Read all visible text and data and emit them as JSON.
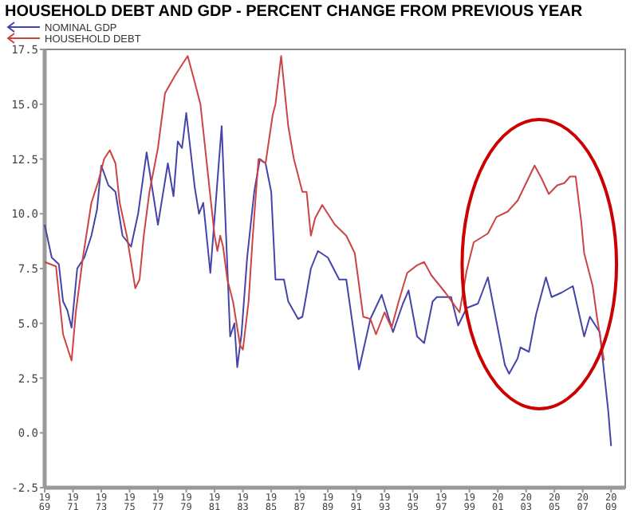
{
  "chart_data": {
    "type": "line",
    "title": "HOUSEHOLD DEBT AND GDP - PERCENT CHANGE FROM PREVIOUS YEAR",
    "legend": "top left",
    "grid": false,
    "xlim": [
      1969,
      2010
    ],
    "xticks": [
      1969,
      1971,
      1973,
      1975,
      1977,
      1979,
      1981,
      1983,
      1985,
      1987,
      1989,
      1991,
      1993,
      1995,
      1997,
      1999,
      2001,
      2003,
      2005,
      2007,
      2009
    ],
    "ylim": [
      -2.5,
      17.5
    ],
    "yticks": [
      -2.5,
      {
        "value": 0,
        "label": "0.0"
      },
      2.5,
      {
        "value": 5,
        "label": "5.0"
      },
      7.5,
      {
        "value": 10,
        "label": "10.0"
      },
      12.5,
      {
        "value": 15,
        "label": "15.0"
      },
      17.5
    ],
    "series": [
      {
        "name": "NOMINAL GDP",
        "color": "#4444aa",
        "x": [
          1969.0,
          1969.5,
          1970.0,
          1970.3,
          1970.6,
          1970.9,
          1971.3,
          1971.8,
          1972.3,
          1972.7,
          1973.0,
          1973.5,
          1974.0,
          1974.5,
          1975.1,
          1975.6,
          1976.2,
          1977.0,
          1977.7,
          1978.1,
          1978.4,
          1978.7,
          1979.0,
          1979.6,
          1979.9,
          1980.2,
          1980.7,
          1981.5,
          1982.1,
          1982.4,
          1982.6,
          1982.9,
          1983.3,
          1983.8,
          1984.2,
          1984.6,
          1985.0,
          1985.3,
          1985.9,
          1986.2,
          1986.9,
          1987.2,
          1987.4,
          1987.8,
          1988.3,
          1989.0,
          1989.8,
          1990.3,
          1991.2,
          1992.0,
          1992.8,
          1993.6,
          1994.3,
          1994.7,
          1995.3,
          1995.8,
          1996.4,
          1996.7,
          1997.7,
          1998.2,
          1998.8,
          1999.6,
          2000.3,
          2000.9,
          2001.5,
          2001.8,
          2002.4,
          2002.6,
          2003.2,
          2003.7,
          2004.4,
          2004.8,
          2005.5,
          2006.3,
          2007.1,
          2007.5,
          2008.2,
          2008.8,
          2009.0
        ],
        "values": [
          9.5,
          8.0,
          7.7,
          6.0,
          5.6,
          4.8,
          7.5,
          8.0,
          9.0,
          10.2,
          12.2,
          11.3,
          11.0,
          9.0,
          8.5,
          10.0,
          12.8,
          9.5,
          12.3,
          10.8,
          13.3,
          13.0,
          14.6,
          11.2,
          10.0,
          10.5,
          7.3,
          14.0,
          4.4,
          5.0,
          3.0,
          4.5,
          8.0,
          11.0,
          12.5,
          12.3,
          11.0,
          7.0,
          7.0,
          6.0,
          5.2,
          5.3,
          6.0,
          7.5,
          8.3,
          8.0,
          7.0,
          7.0,
          2.9,
          5.2,
          6.3,
          4.6,
          5.9,
          6.5,
          4.4,
          4.1,
          6.0,
          6.2,
          6.2,
          4.9,
          5.7,
          5.9,
          7.1,
          5.1,
          3.1,
          2.7,
          3.4,
          3.9,
          3.7,
          5.4,
          7.1,
          6.2,
          6.4,
          6.7,
          4.4,
          5.3,
          4.6,
          1.0,
          -0.6
        ]
      },
      {
        "name": "HOUSEHOLD DEBT",
        "color": "#cc4444",
        "x": [
          1969.0,
          1969.8,
          1970.3,
          1970.9,
          1971.2,
          1971.7,
          1972.3,
          1972.8,
          1973.2,
          1973.6,
          1974.0,
          1974.3,
          1974.8,
          1975.4,
          1975.7,
          1976.0,
          1976.4,
          1977.0,
          1977.5,
          1978.2,
          1979.1,
          1979.6,
          1980.0,
          1980.5,
          1981.0,
          1981.2,
          1981.4,
          1981.6,
          1981.9,
          1982.3,
          1982.8,
          1983.0,
          1983.4,
          1983.7,
          1984.1,
          1984.6,
          1985.1,
          1985.3,
          1985.7,
          1986.2,
          1986.6,
          1987.2,
          1987.5,
          1987.8,
          1988.1,
          1988.6,
          1989.5,
          1990.3,
          1990.9,
          1991.5,
          1992.0,
          1992.4,
          1993.0,
          1993.5,
          1994.0,
          1994.6,
          1995.3,
          1995.8,
          1996.3,
          1996.8,
          1997.3,
          1997.8,
          1998.3,
          1998.8,
          1999.3,
          2000.3,
          2000.9,
          2001.7,
          2002.4,
          2003.3,
          2003.6,
          2004.1,
          2004.6,
          2005.2,
          2005.7,
          2006.1,
          2006.5,
          2006.9,
          2007.1,
          2007.7,
          2008.0,
          2008.5
        ],
        "values": [
          7.8,
          7.6,
          4.5,
          3.3,
          5.5,
          8.0,
          10.5,
          11.5,
          12.5,
          12.9,
          12.3,
          10.5,
          9.0,
          6.6,
          7.0,
          9.0,
          11.0,
          13.0,
          15.5,
          16.3,
          17.2,
          16.0,
          15.0,
          12.0,
          9.0,
          8.3,
          9.0,
          8.5,
          7.0,
          6.0,
          4.0,
          3.8,
          6.0,
          9.0,
          12.5,
          12.3,
          14.5,
          15.0,
          17.2,
          14.0,
          12.5,
          11.0,
          11.0,
          9.0,
          9.8,
          10.4,
          9.5,
          9.0,
          8.2,
          5.3,
          5.2,
          4.5,
          5.5,
          4.8,
          6.0,
          7.3,
          7.65,
          7.8,
          7.2,
          6.8,
          6.4,
          5.95,
          5.5,
          7.4,
          8.7,
          9.1,
          9.85,
          10.1,
          10.6,
          11.8,
          12.2,
          11.6,
          10.9,
          11.3,
          11.4,
          11.7,
          11.7,
          9.6,
          8.2,
          6.7,
          5.3,
          3.3
        ]
      }
    ]
  }
}
